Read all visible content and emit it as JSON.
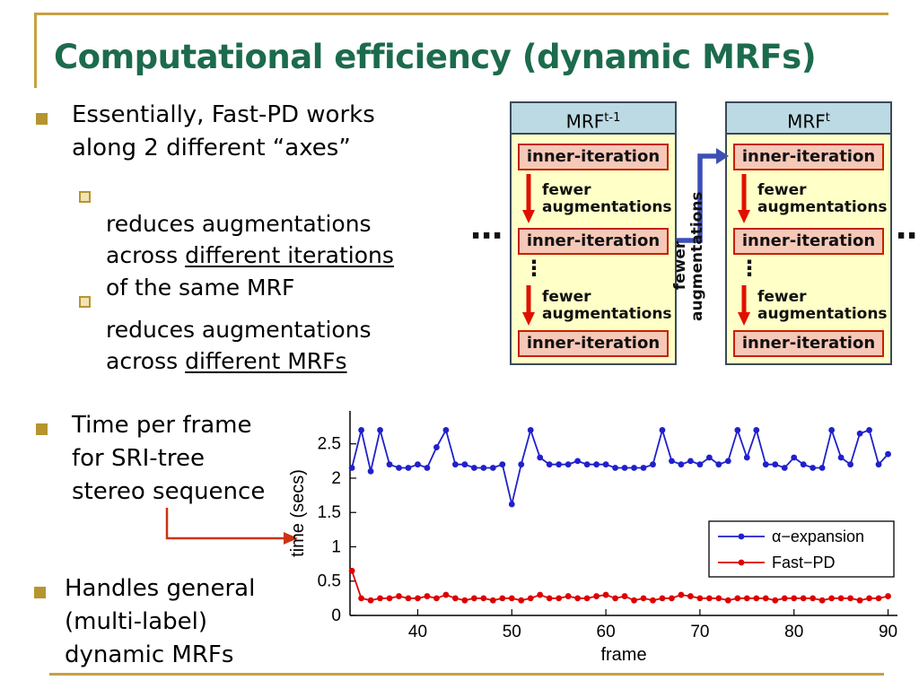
{
  "slide": {
    "title": "Computational efficiency (dynamic MRFs)",
    "accent_gold": "#C6A143",
    "title_color": "#1C6B4C"
  },
  "bullets": {
    "b1": "Essentially, Fast-PD works\nalong 2 different “axes”",
    "b1_sub1": {
      "pre": "reduces augmentations\nacross ",
      "underline": "different iterations",
      "post": "\nof the same MRF"
    },
    "b1_sub2": {
      "pre": "reduces augmentations\nacross ",
      "underline": "different MRFs",
      "post": ""
    },
    "b2": "Time per frame\nfor SRI-tree\nstereo sequence",
    "b3": "Handles general\n(multi-label)\ndynamic MRFs"
  },
  "diagram": {
    "left_mrf": {
      "header_base": "MRF",
      "header_sup": "t-1"
    },
    "right_mrf": {
      "header_base": "MRF",
      "header_sup": "t"
    },
    "inner_label": "inner-iteration",
    "fewer_label": "fewer\naugmentations",
    "between_label": "fewer\naugmentations",
    "ellipsis": "⋯",
    "vdots": "⋮",
    "colors": {
      "header_bg": "#BCDAE3",
      "body_bg": "#FFFFC8",
      "inner_bg": "#F6C8B8",
      "inner_border": "#C52200",
      "arrow_red": "#E01000",
      "arrow_blue": "#3D4FB5"
    }
  },
  "chart_data": {
    "type": "line",
    "title": "",
    "xlabel": "frame",
    "ylabel": "time (secs)",
    "xlim": [
      32.8,
      91
    ],
    "ylim": [
      0,
      2.98
    ],
    "xticks": [
      40,
      50,
      60,
      70,
      80,
      90
    ],
    "yticks": [
      0,
      0.5,
      1,
      1.5,
      2,
      2.5
    ],
    "grid": false,
    "legend_position": "right-middle",
    "x": [
      33,
      34,
      35,
      36,
      37,
      38,
      39,
      40,
      41,
      42,
      43,
      44,
      45,
      46,
      47,
      48,
      49,
      50,
      51,
      52,
      53,
      54,
      55,
      56,
      57,
      58,
      59,
      60,
      61,
      62,
      63,
      64,
      65,
      66,
      67,
      68,
      69,
      70,
      71,
      72,
      73,
      74,
      75,
      76,
      77,
      78,
      79,
      80,
      81,
      82,
      83,
      84,
      85,
      86,
      87,
      88,
      89,
      90
    ],
    "series": [
      {
        "name": "α−expansion",
        "color": "#2020CC",
        "values": [
          2.15,
          2.7,
          2.1,
          2.7,
          2.2,
          2.15,
          2.15,
          2.2,
          2.15,
          2.45,
          2.7,
          2.2,
          2.2,
          2.15,
          2.15,
          2.15,
          2.2,
          1.62,
          2.2,
          2.7,
          2.3,
          2.2,
          2.2,
          2.2,
          2.25,
          2.2,
          2.2,
          2.2,
          2.15,
          2.15,
          2.15,
          2.15,
          2.2,
          2.7,
          2.25,
          2.2,
          2.25,
          2.2,
          2.3,
          2.2,
          2.25,
          2.7,
          2.3,
          2.7,
          2.2,
          2.2,
          2.15,
          2.3,
          2.2,
          2.15,
          2.15,
          2.7,
          2.3,
          2.2,
          2.65,
          2.7,
          2.2,
          2.35
        ]
      },
      {
        "name": "Fast−PD",
        "color": "#DD0000",
        "values": [
          0.65,
          0.25,
          0.22,
          0.25,
          0.25,
          0.28,
          0.25,
          0.25,
          0.28,
          0.25,
          0.3,
          0.25,
          0.22,
          0.25,
          0.25,
          0.22,
          0.25,
          0.25,
          0.22,
          0.25,
          0.3,
          0.25,
          0.25,
          0.28,
          0.25,
          0.25,
          0.28,
          0.3,
          0.25,
          0.28,
          0.22,
          0.25,
          0.22,
          0.25,
          0.25,
          0.3,
          0.28,
          0.25,
          0.25,
          0.25,
          0.22,
          0.25,
          0.25,
          0.25,
          0.25,
          0.22,
          0.25,
          0.25,
          0.25,
          0.25,
          0.22,
          0.25,
          0.25,
          0.25,
          0.22,
          0.25,
          0.25,
          0.28
        ]
      }
    ]
  }
}
